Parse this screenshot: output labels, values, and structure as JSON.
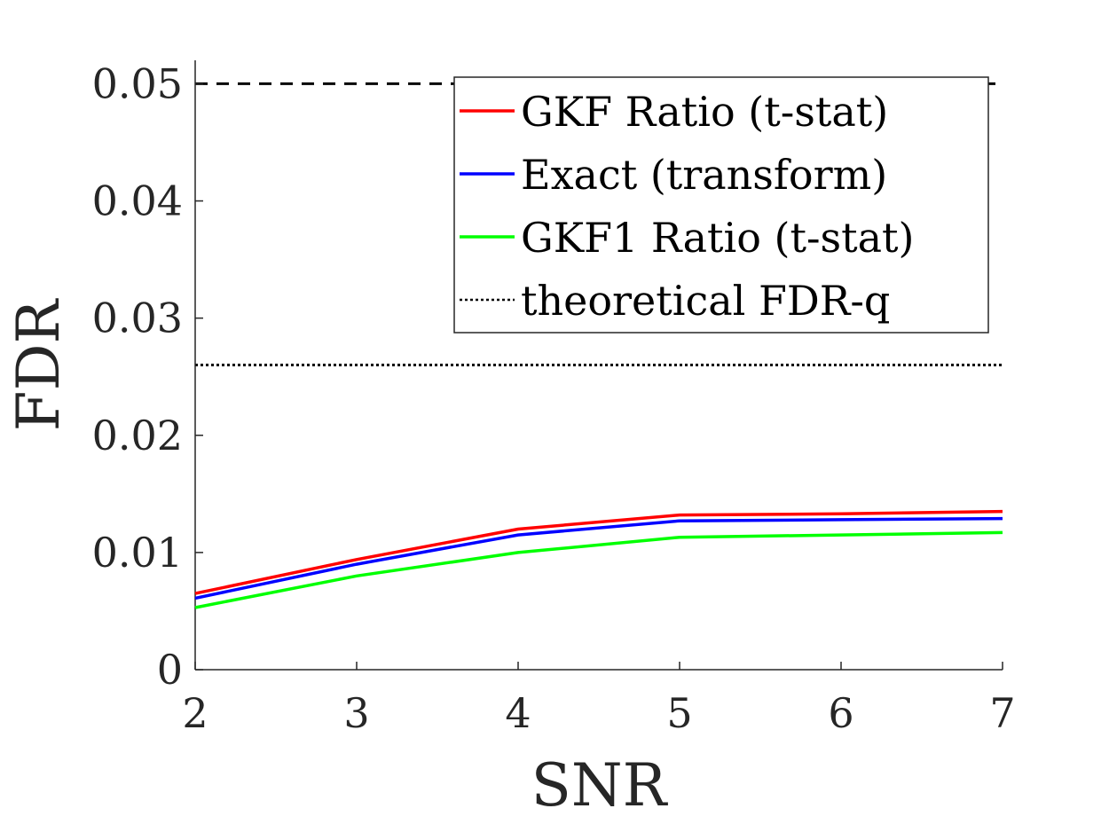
{
  "chart_data": {
    "type": "line",
    "xlabel": "SNR",
    "ylabel": "FDR",
    "xlim": [
      2,
      7
    ],
    "ylim": [
      0,
      0.052
    ],
    "x_ticks": [
      "2",
      "3",
      "4",
      "5",
      "6",
      "7"
    ],
    "y_ticks": [
      "0",
      "0.01",
      "0.02",
      "0.03",
      "0.04",
      "0.05"
    ],
    "x": [
      2,
      3,
      4,
      5,
      6,
      7
    ],
    "series": [
      {
        "name": "GKF Ratio (t-stat)",
        "color": "#ff0000",
        "style": "solid",
        "values": [
          0.0065,
          0.0094,
          0.012,
          0.0132,
          0.0133,
          0.0135
        ]
      },
      {
        "name": "Exact (transform)",
        "color": "#0000ff",
        "style": "solid",
        "values": [
          0.0061,
          0.009,
          0.0115,
          0.0127,
          0.0128,
          0.0129
        ]
      },
      {
        "name": "GKF1 Ratio (t-stat)",
        "color": "#00ff00",
        "style": "solid",
        "values": [
          0.0053,
          0.008,
          0.01,
          0.0113,
          0.0115,
          0.0117
        ]
      }
    ],
    "reference_lines": [
      {
        "name": "theoretical FDR-q",
        "color": "#000000",
        "style": "dotted",
        "value": 0.026
      },
      {
        "name": "",
        "color": "#000000",
        "style": "dashed",
        "value": 0.05
      }
    ],
    "legend": [
      "GKF Ratio (t-stat)",
      "Exact (transform)",
      "GKF1 Ratio (t-stat)",
      "theoretical FDR-q"
    ],
    "legend_position": "top-right",
    "grid": false
  }
}
